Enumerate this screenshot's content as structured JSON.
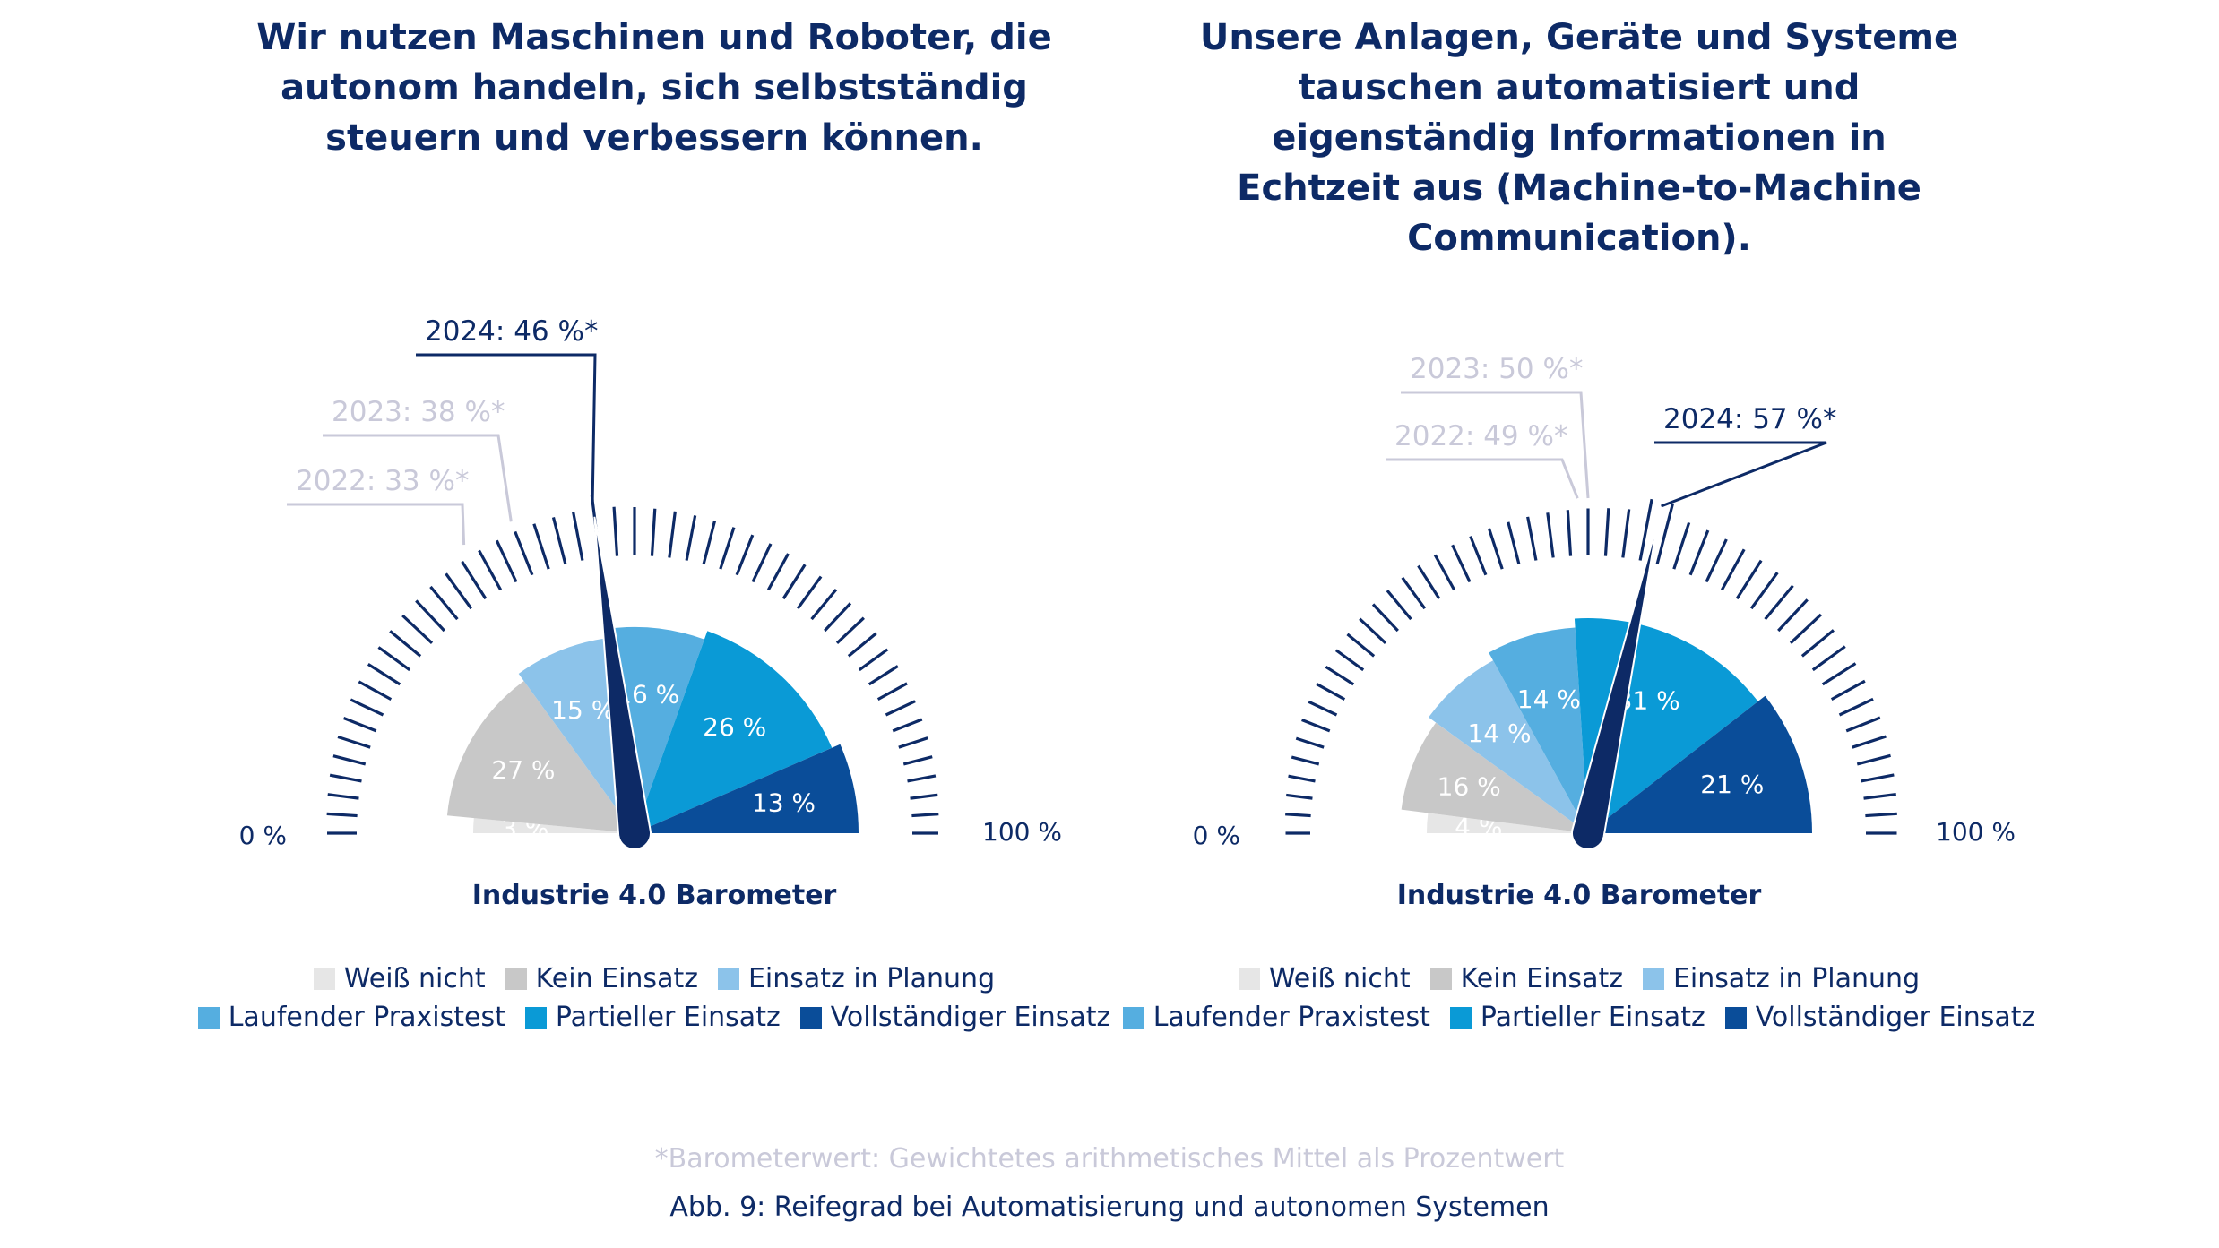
{
  "chart_data": [
    {
      "type": "gauge",
      "title": "Wir nutzen Maschinen und Roboter, die autonom handeln, sich selbstständig steuern und verbessern können.",
      "subtitle": "Industrie 4.0 Barometer",
      "scale_min_label": "0 %",
      "scale_max_label": "100 %",
      "segments": [
        {
          "name": "Weiß nicht",
          "value": 3,
          "label": "3 %"
        },
        {
          "name": "Kein Einsatz",
          "value": 27,
          "label": "27 %"
        },
        {
          "name": "Einsatz in Planung",
          "value": 15,
          "label": "15 %"
        },
        {
          "name": "Laufender Praxistest",
          "value": 16,
          "label": "16 %"
        },
        {
          "name": "Partieller Einsatz",
          "value": 26,
          "label": "26 %"
        },
        {
          "name": "Vollständiger Einsatz",
          "value": 13,
          "label": "13 %"
        }
      ],
      "markers": [
        {
          "year": "2024",
          "value": 46,
          "label": "2024: 46 %*",
          "current": true
        },
        {
          "year": "2023",
          "value": 38,
          "label": "2023: 38 %*",
          "current": false
        },
        {
          "year": "2022",
          "value": 33,
          "label": "2022: 33 %*",
          "current": false
        }
      ]
    },
    {
      "type": "gauge",
      "title": "Unsere Anlagen, Geräte und Systeme tauschen automatisiert und eigenständig Informationen in Echtzeit aus (Machine-to-Machine Communication).",
      "subtitle": "Industrie 4.0 Barometer",
      "scale_min_label": "0 %",
      "scale_max_label": "100 %",
      "segments": [
        {
          "name": "Weiß nicht",
          "value": 4,
          "label": "4 %"
        },
        {
          "name": "Kein Einsatz",
          "value": 16,
          "label": "16 %"
        },
        {
          "name": "Einsatz in Planung",
          "value": 14,
          "label": "14 %"
        },
        {
          "name": "Laufender Praxistest",
          "value": 14,
          "label": "14 %"
        },
        {
          "name": "Partieller Einsatz",
          "value": 31,
          "label": "31 %"
        },
        {
          "name": "Vollständiger Einsatz",
          "value": 21,
          "label": "21 %"
        }
      ],
      "markers": [
        {
          "year": "2024",
          "value": 57,
          "label": "2024: 57 %*",
          "current": true
        },
        {
          "year": "2023",
          "value": 50,
          "label": "2023: 50 %*",
          "current": false
        },
        {
          "year": "2022",
          "value": 49,
          "label": "2022: 49 %*",
          "current": false
        }
      ]
    }
  ],
  "legend": {
    "row1": [
      "Weiß nicht",
      "Kein Einsatz",
      "Einsatz in Planung"
    ],
    "row2": [
      "Laufender Praxistest",
      "Partieller Einsatz",
      "Vollständiger Einsatz"
    ]
  },
  "colors": {
    "Weiß nicht": "#e6e6e6",
    "Kein Einsatz": "#c8c8c8",
    "Einsatz in Planung": "#8cc3ea",
    "Laufender Praxistest": "#55aee0",
    "Partieller Einsatz": "#0a9ad6",
    "Vollständiger Einsatz": "#0a4d99",
    "navy": "#0d2a66",
    "past_marker": "#c9c9d9"
  },
  "footnote": "*Barometerwert: Gewichtetes arithmetisches Mittel als Prozentwert",
  "caption": "Abb. 9: Reifegrad bei Automatisierung und autonomen Systemen"
}
